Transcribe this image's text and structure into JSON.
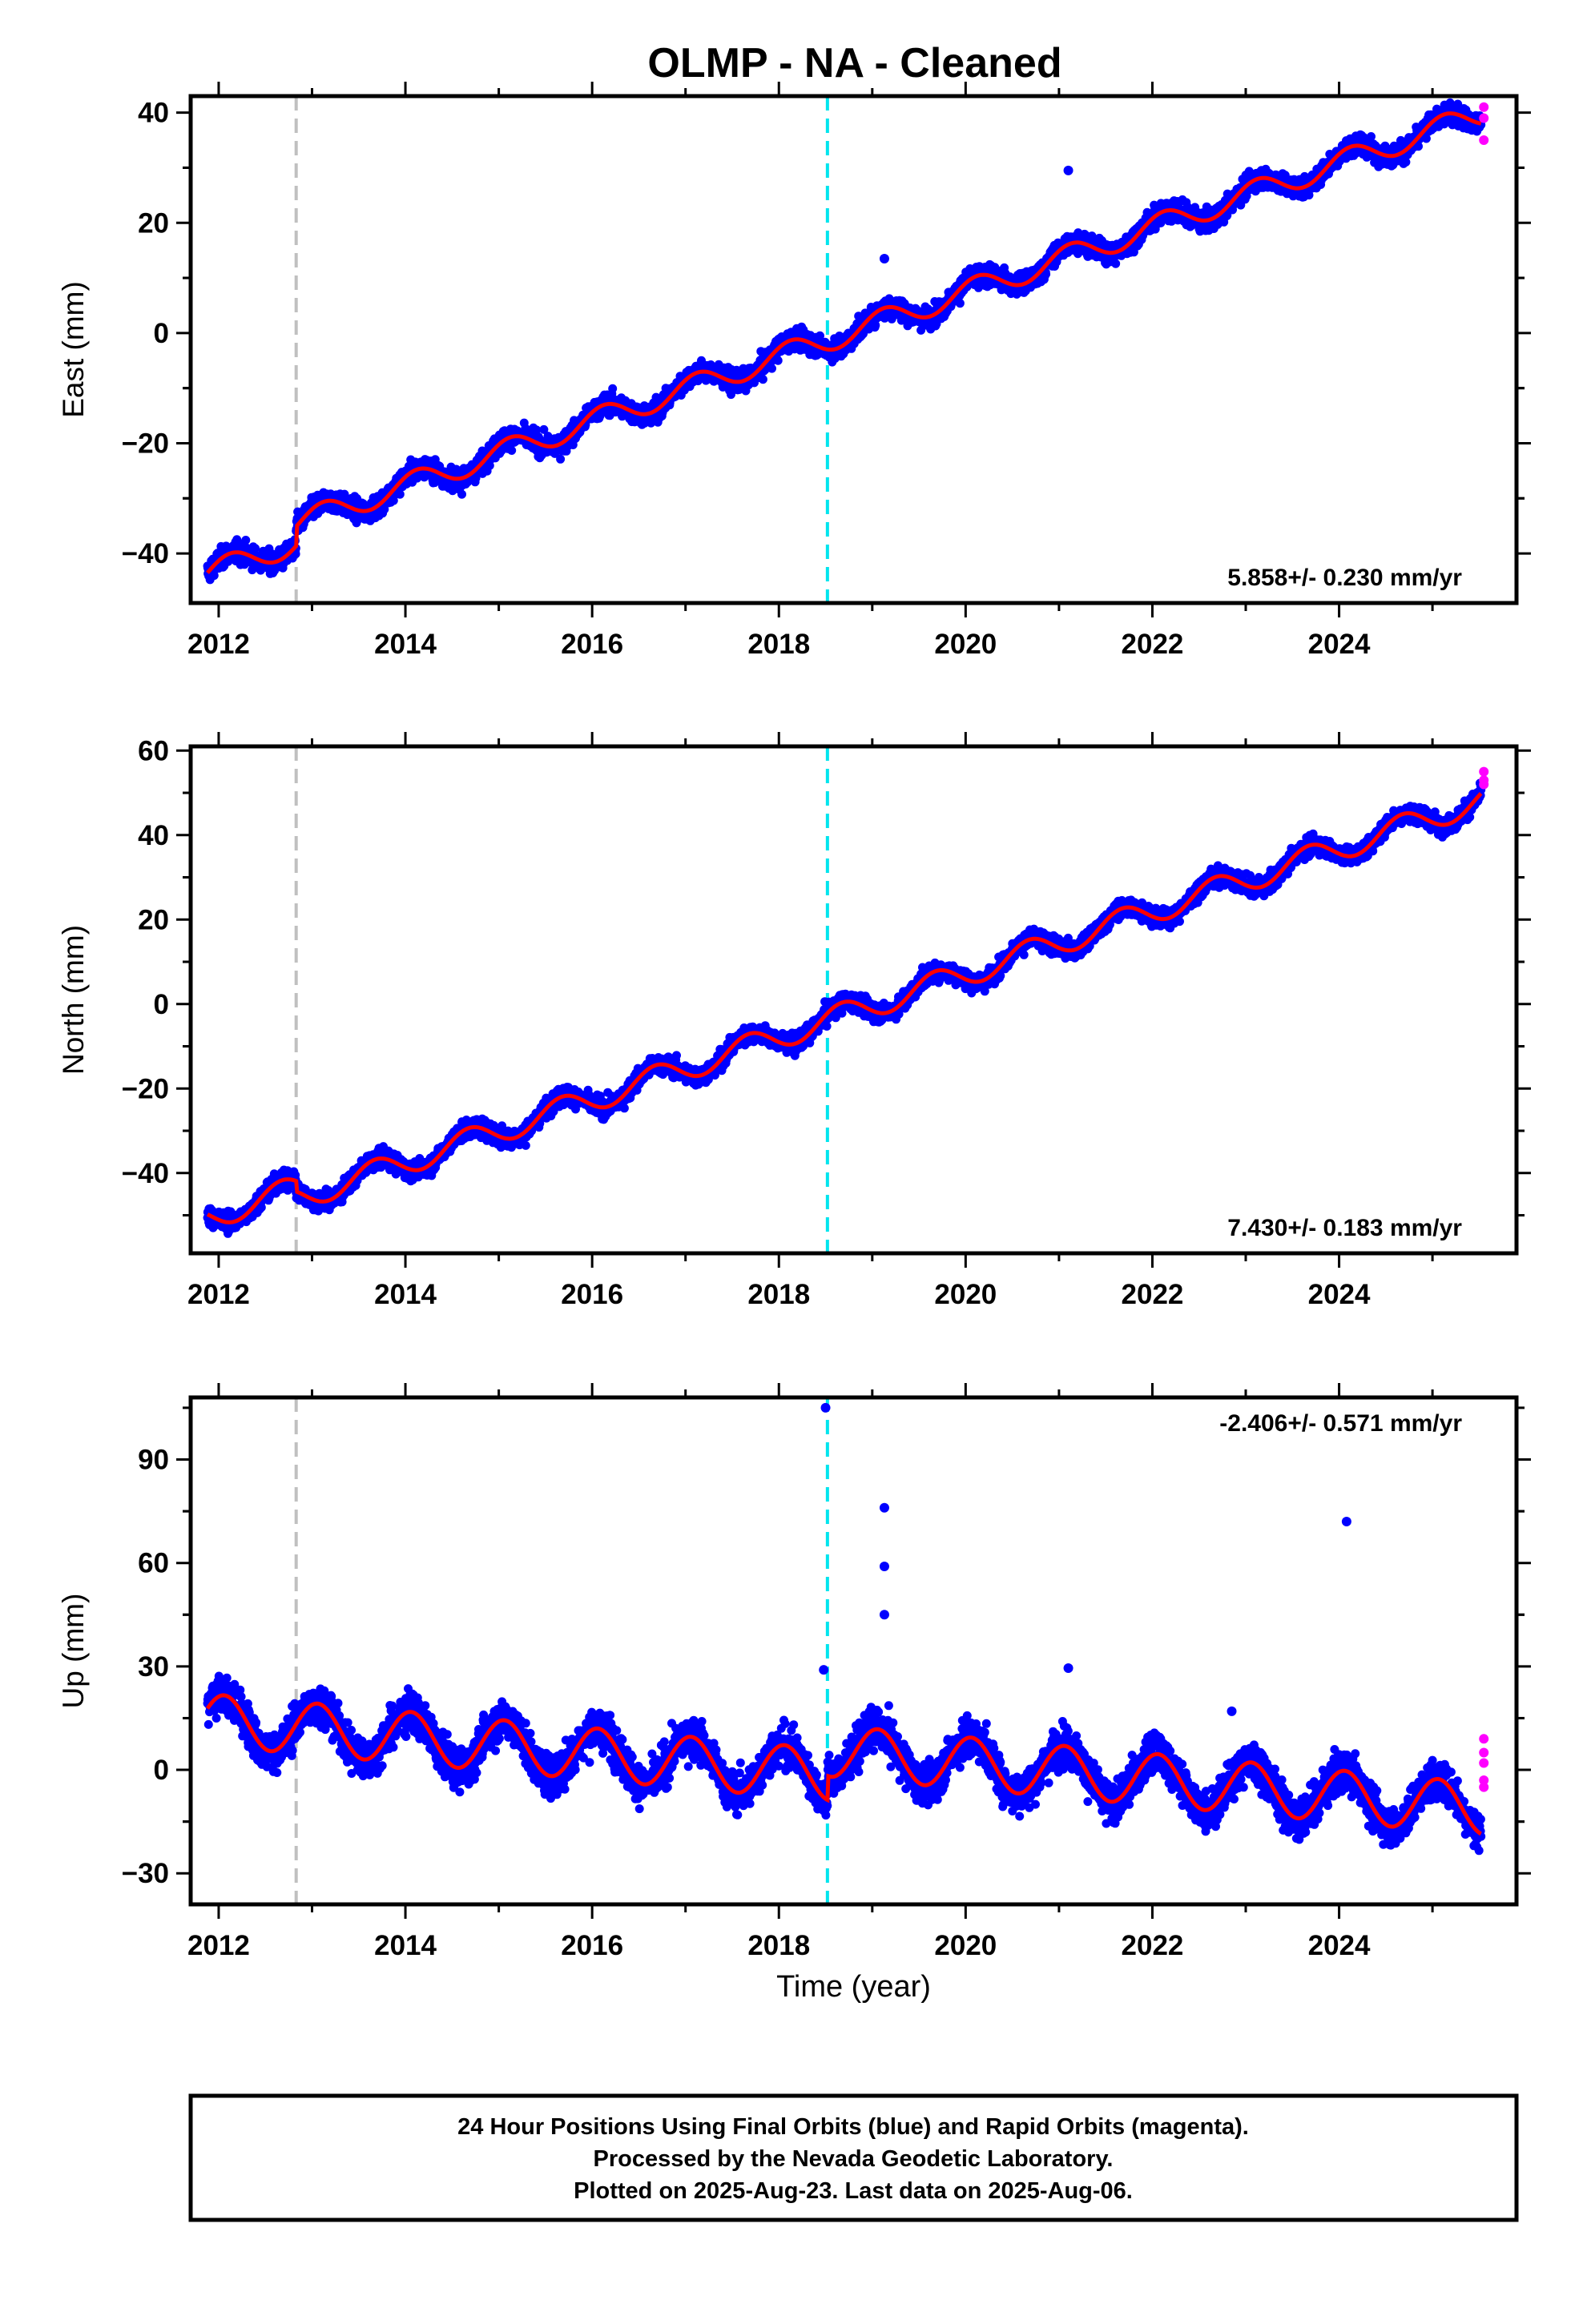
{
  "title": "OLMP  - NA - Cleaned",
  "colors": {
    "final_orbits": "#0000ff",
    "rapid_orbits": "#ff00ff",
    "model_fit": "#ff0000",
    "event_gray": "#c0c0c0",
    "event_cyan": "#00e5ee"
  },
  "footer": [
    "24 Hour Positions Using Final Orbits (blue) and Rapid Orbits (magenta).",
    "Processed by the Nevada Geodetic Laboratory.",
    "Plotted on 2025-Aug-23. Last data on 2025-Aug-06."
  ],
  "chart_data": [
    {
      "type": "scatter",
      "component": "east",
      "ylabel": "East (mm)",
      "rate_label": "5.858+/- 0.230 mm/yr",
      "xlim": [
        2011.7,
        2025.9
      ],
      "ylim": [
        -49,
        43
      ],
      "xticks": [
        2012,
        2014,
        2016,
        2018,
        2020,
        2022,
        2024
      ],
      "yticks": [
        -40,
        -20,
        0,
        20,
        40
      ],
      "event_lines": [
        {
          "x": 2012.83,
          "color": "gray"
        },
        {
          "x": 2018.52,
          "color": "cyan"
        }
      ],
      "model": {
        "t0": 2011.9,
        "offset": -43.5,
        "rate": 5.858,
        "annual_amp": 2.2,
        "annual_phase": 0.8,
        "steps": [
          {
            "t": 2012.83,
            "dy": 3.5
          }
        ]
      },
      "scatter_mm": 1.3,
      "outliers": [
        {
          "x": 2021.1,
          "y": 29.5
        },
        {
          "x": 2019.13,
          "y": 13.5
        }
      ],
      "rapid_points": [
        {
          "x": 2025.55,
          "y": 41
        },
        {
          "x": 2025.55,
          "y": 39
        },
        {
          "x": 2025.55,
          "y": 35
        }
      ],
      "grid": false,
      "legend": "none"
    },
    {
      "type": "scatter",
      "component": "north",
      "ylabel": "North (mm)",
      "rate_label": "7.430+/- 0.183 mm/yr",
      "xlim": [
        2011.7,
        2025.9
      ],
      "ylim": [
        -59,
        61
      ],
      "xticks": [
        2012,
        2014,
        2016,
        2018,
        2020,
        2022,
        2024
      ],
      "yticks": [
        -40,
        -20,
        0,
        20,
        40,
        60
      ],
      "event_lines": [
        {
          "x": 2012.83,
          "color": "gray"
        },
        {
          "x": 2018.52,
          "color": "cyan"
        }
      ],
      "model": {
        "t0": 2011.9,
        "offset": -50.5,
        "rate": 7.43,
        "annual_amp": 3.0,
        "annual_phase": 3.6,
        "steps": [
          {
            "t": 2012.83,
            "dy": -2.5
          }
        ]
      },
      "scatter_mm": 1.5,
      "outliers": [],
      "rapid_points": [
        {
          "x": 2025.55,
          "y": 55
        },
        {
          "x": 2025.55,
          "y": 53
        },
        {
          "x": 2025.55,
          "y": 52
        }
      ],
      "grid": false,
      "legend": "none"
    },
    {
      "type": "scatter",
      "component": "up",
      "ylabel": "Up (mm)",
      "xlabel": "Time (year)",
      "rate_label": "-2.406+/- 0.571 mm/yr",
      "xlim": [
        2011.7,
        2025.9
      ],
      "ylim": [
        -39,
        108
      ],
      "xticks": [
        2012,
        2014,
        2016,
        2018,
        2020,
        2022,
        2024
      ],
      "yticks": [
        -30,
        0,
        30,
        60,
        90
      ],
      "event_lines": [
        {
          "x": 2012.83,
          "color": "gray"
        },
        {
          "x": 2018.52,
          "color": "cyan"
        }
      ],
      "model": {
        "t0": 2011.9,
        "offset": 14.5,
        "rate": -2.406,
        "annual_amp": 7.5,
        "annual_phase": 1.2,
        "steps": [
          {
            "t": 2018.52,
            "dy": 7
          }
        ]
      },
      "scatter_mm": 4.0,
      "outliers": [
        {
          "x": 2018.5,
          "y": 105
        },
        {
          "x": 2019.13,
          "y": 76
        },
        {
          "x": 2019.13,
          "y": 59
        },
        {
          "x": 2019.13,
          "y": 45
        },
        {
          "x": 2024.08,
          "y": 72
        },
        {
          "x": 2021.1,
          "y": 29.5
        },
        {
          "x": 2018.48,
          "y": 29
        },
        {
          "x": 2022.85,
          "y": 17
        }
      ],
      "rapid_points": [
        {
          "x": 2025.55,
          "y": 9
        },
        {
          "x": 2025.55,
          "y": 5
        },
        {
          "x": 2025.55,
          "y": 2
        },
        {
          "x": 2025.55,
          "y": -3
        },
        {
          "x": 2025.55,
          "y": -5
        }
      ],
      "grid": false,
      "legend": "none"
    }
  ]
}
